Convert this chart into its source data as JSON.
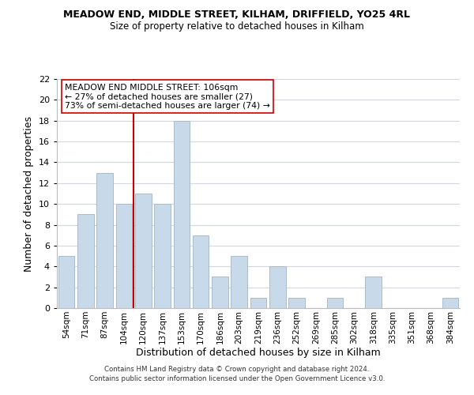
{
  "title": "MEADOW END, MIDDLE STREET, KILHAM, DRIFFIELD, YO25 4RL",
  "subtitle": "Size of property relative to detached houses in Kilham",
  "xlabel": "Distribution of detached houses by size in Kilham",
  "ylabel": "Number of detached properties",
  "bar_color": "#c8daea",
  "bar_edge_color": "#aabccc",
  "categories": [
    "54sqm",
    "71sqm",
    "87sqm",
    "104sqm",
    "120sqm",
    "137sqm",
    "153sqm",
    "170sqm",
    "186sqm",
    "203sqm",
    "219sqm",
    "236sqm",
    "252sqm",
    "269sqm",
    "285sqm",
    "302sqm",
    "318sqm",
    "335sqm",
    "351sqm",
    "368sqm",
    "384sqm"
  ],
  "values": [
    5,
    9,
    13,
    10,
    11,
    10,
    18,
    7,
    3,
    5,
    1,
    4,
    1,
    0,
    1,
    0,
    3,
    0,
    0,
    0,
    1
  ],
  "ylim": [
    0,
    22
  ],
  "yticks": [
    0,
    2,
    4,
    6,
    8,
    10,
    12,
    14,
    16,
    18,
    20,
    22
  ],
  "vline_x": 3.5,
  "vline_color": "#cc0000",
  "annotation_title": "MEADOW END MIDDLE STREET: 106sqm",
  "annotation_line1": "← 27% of detached houses are smaller (27)",
  "annotation_line2": "73% of semi-detached houses are larger (74) →",
  "footer1": "Contains HM Land Registry data © Crown copyright and database right 2024.",
  "footer2": "Contains public sector information licensed under the Open Government Licence v3.0.",
  "background_color": "#ffffff",
  "grid_color": "#d0d8e4"
}
